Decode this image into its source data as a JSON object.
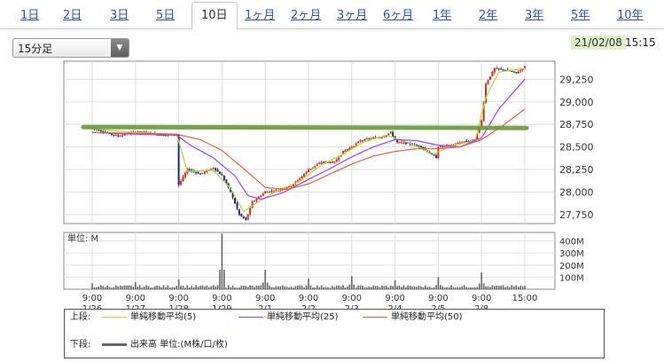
{
  "tabs": [
    {
      "label": "1日",
      "active": false
    },
    {
      "label": "2日",
      "active": false
    },
    {
      "label": "3日",
      "active": false
    },
    {
      "label": "5日",
      "active": false
    },
    {
      "label": "10日",
      "active": true
    },
    {
      "label": "1ヶ月",
      "active": false
    },
    {
      "label": "2ヶ月",
      "active": false
    },
    {
      "label": "3ヶ月",
      "active": false
    },
    {
      "label": "6ヶ月",
      "active": false
    },
    {
      "label": "1年",
      "active": false
    },
    {
      "label": "2年",
      "active": false
    },
    {
      "label": "3年",
      "active": false
    },
    {
      "label": "5年",
      "active": false
    },
    {
      "label": "10年",
      "active": false
    }
  ],
  "interval_select": {
    "value": "15分足"
  },
  "header": {
    "date": "21/02/08",
    "time": "15:15"
  },
  "colors": {
    "ma5": "#b8d63a",
    "ma25": "#a040ff",
    "ma50": "#e8603c",
    "up_candle": "#d02a1a",
    "down_candle": "#1a2a70",
    "volume": "#666666",
    "resistance_line": "#6a9a3a",
    "date_highlight": "#dff1c8"
  },
  "chart_data": {
    "type": "candlestick",
    "ylim": [
      27650,
      29450
    ],
    "yticks": [
      "29,250",
      "29,000",
      "28,750",
      "28,500",
      "28,250",
      "28,000",
      "27,750"
    ],
    "ytick_values": [
      29250,
      29000,
      28750,
      28500,
      28250,
      28000,
      27750
    ],
    "xtick_times": [
      "9:00",
      "9:00",
      "9:00",
      "9:00",
      "9:00",
      "9:00",
      "9:00",
      "9:00",
      "9:00",
      "9:00",
      "15:00"
    ],
    "xtick_dates": [
      "1/26",
      "1/27",
      "1/28",
      "1/29",
      "2/1",
      "2/2",
      "2/3",
      "2/4",
      "2/5",
      "2/8",
      ""
    ],
    "price_path": [
      [
        0,
        28710
      ],
      [
        0.3,
        28660
      ],
      [
        0.6,
        28620
      ],
      [
        1.0,
        28670
      ],
      [
        1.3,
        28660
      ],
      [
        1.6,
        28630
      ],
      [
        1.95,
        28640
      ],
      [
        2.0,
        28080
      ],
      [
        2.2,
        28250
      ],
      [
        2.5,
        28200
      ],
      [
        2.8,
        28270
      ],
      [
        3.0,
        28180
      ],
      [
        3.2,
        28000
      ],
      [
        3.4,
        27750
      ],
      [
        3.55,
        27690
      ],
      [
        3.7,
        27890
      ],
      [
        4.0,
        28000
      ],
      [
        4.3,
        28020
      ],
      [
        4.6,
        28070
      ],
      [
        4.8,
        28150
      ],
      [
        5.0,
        28250
      ],
      [
        5.3,
        28330
      ],
      [
        5.6,
        28330
      ],
      [
        5.8,
        28450
      ],
      [
        6.0,
        28500
      ],
      [
        6.2,
        28570
      ],
      [
        6.5,
        28600
      ],
      [
        6.7,
        28610
      ],
      [
        6.9,
        28660
      ],
      [
        7.05,
        28550
      ],
      [
        7.3,
        28540
      ],
      [
        7.6,
        28500
      ],
      [
        7.95,
        28380
      ],
      [
        8.0,
        28500
      ],
      [
        8.3,
        28520
      ],
      [
        8.6,
        28560
      ],
      [
        8.85,
        28580
      ],
      [
        9.0,
        28790
      ],
      [
        9.1,
        29200
      ],
      [
        9.3,
        29370
      ],
      [
        9.6,
        29350
      ],
      [
        9.8,
        29320
      ],
      [
        10.0,
        29390
      ]
    ],
    "ma_series": [
      {
        "name": "単純移動平均(5)",
        "points": [
          [
            0,
            28700
          ],
          [
            1.0,
            28660
          ],
          [
            1.95,
            28640
          ],
          [
            2.2,
            28230
          ],
          [
            2.8,
            28240
          ],
          [
            3.2,
            28040
          ],
          [
            3.5,
            27780
          ],
          [
            3.8,
            27880
          ],
          [
            4.3,
            28020
          ],
          [
            4.8,
            28120
          ],
          [
            5.3,
            28300
          ],
          [
            5.8,
            28420
          ],
          [
            6.3,
            28560
          ],
          [
            6.8,
            28630
          ],
          [
            7.3,
            28550
          ],
          [
            7.9,
            28420
          ],
          [
            8.3,
            28510
          ],
          [
            8.85,
            28570
          ],
          [
            9.1,
            29050
          ],
          [
            9.4,
            29330
          ],
          [
            10.0,
            29370
          ]
        ]
      },
      {
        "name": "単純移動平均(25)",
        "points": [
          [
            0,
            28660
          ],
          [
            1.0,
            28640
          ],
          [
            1.95,
            28630
          ],
          [
            2.3,
            28510
          ],
          [
            2.8,
            28380
          ],
          [
            3.3,
            28180
          ],
          [
            3.6,
            27960
          ],
          [
            3.9,
            27920
          ],
          [
            4.4,
            27990
          ],
          [
            5.0,
            28140
          ],
          [
            5.5,
            28260
          ],
          [
            6.0,
            28390
          ],
          [
            6.5,
            28500
          ],
          [
            7.0,
            28580
          ],
          [
            7.5,
            28570
          ],
          [
            8.0,
            28520
          ],
          [
            8.5,
            28500
          ],
          [
            9.0,
            28600
          ],
          [
            9.4,
            28920
          ],
          [
            10.0,
            29250
          ]
        ]
      },
      {
        "name": "単純移動平均(50)",
        "points": [
          [
            0,
            28660
          ],
          [
            1.0,
            28650
          ],
          [
            1.95,
            28640
          ],
          [
            2.5,
            28580
          ],
          [
            3.0,
            28460
          ],
          [
            3.5,
            28260
          ],
          [
            4.0,
            28050
          ],
          [
            4.5,
            28030
          ],
          [
            5.0,
            28090
          ],
          [
            5.5,
            28200
          ],
          [
            6.0,
            28310
          ],
          [
            6.5,
            28400
          ],
          [
            7.0,
            28450
          ],
          [
            7.5,
            28480
          ],
          [
            8.0,
            28480
          ],
          [
            8.5,
            28500
          ],
          [
            9.0,
            28580
          ],
          [
            9.5,
            28740
          ],
          [
            10.0,
            28920
          ]
        ]
      }
    ],
    "resistance_line_value": 28720,
    "volume": {
      "label": "単位: M",
      "yticks": [
        "400M",
        "300M",
        "200M",
        "100M"
      ],
      "ytick_values": [
        400,
        300,
        200,
        100
      ],
      "ylim": [
        0,
        470
      ],
      "session_open_spikes": [
        [
          0,
          50
        ],
        [
          1,
          60
        ],
        [
          2,
          80
        ],
        [
          3,
          460
        ],
        [
          4,
          160
        ],
        [
          5,
          90
        ],
        [
          6,
          110
        ],
        [
          7,
          75
        ],
        [
          8,
          100
        ],
        [
          9,
          140
        ]
      ],
      "base_level": 25
    }
  },
  "legend": {
    "upper_label": "上段:",
    "lower_label": "下段:",
    "items": [
      {
        "label": "単純移動平均(5)"
      },
      {
        "label": "単純移動平均(25)"
      },
      {
        "label": "単純移動平均(50)"
      }
    ],
    "volume_item": "出来高 単位:(M株/口/枚)"
  }
}
